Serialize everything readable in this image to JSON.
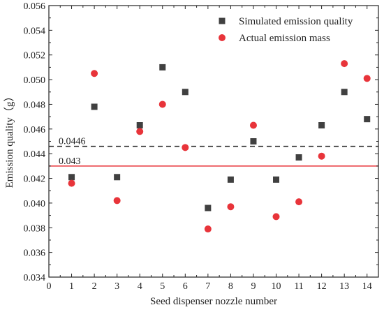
{
  "chart_data": {
    "type": "scatter",
    "xlabel": "Seed dispenser nozzle number",
    "ylabel": "Emission quality（g）",
    "xlim": [
      0,
      14.5
    ],
    "ylim": [
      0.034,
      0.056
    ],
    "xticks": [
      "0",
      "1",
      "2",
      "3",
      "4",
      "5",
      "6",
      "7",
      "8",
      "9",
      "10",
      "11",
      "12",
      "13",
      "14"
    ],
    "yticks": [
      "0.034",
      "0.036",
      "0.038",
      "0.040",
      "0.042",
      "0.044",
      "0.046",
      "0.048",
      "0.050",
      "0.052",
      "0.054",
      "0.056"
    ],
    "legend_position": "top-right",
    "grid": false,
    "series": [
      {
        "name": "Simulated emission quality",
        "marker": "square",
        "color": "#404040",
        "x": [
          1,
          2,
          3,
          4,
          5,
          6,
          7,
          8,
          9,
          10,
          11,
          12,
          13,
          14
        ],
        "values": [
          0.0421,
          0.0478,
          0.0421,
          0.0463,
          0.051,
          0.049,
          0.0396,
          0.0419,
          0.045,
          0.0419,
          0.0437,
          0.0463,
          0.049,
          0.0468
        ]
      },
      {
        "name": "Actual emission mass",
        "marker": "circle",
        "color": "#e8343a",
        "x": [
          1,
          2,
          3,
          4,
          5,
          6,
          7,
          8,
          9,
          10,
          11,
          12,
          13,
          14
        ],
        "values": [
          0.0416,
          0.0505,
          0.0402,
          0.0458,
          0.048,
          0.0445,
          0.0379,
          0.0397,
          0.0463,
          0.0389,
          0.0401,
          0.0438,
          0.0513,
          0.0501
        ]
      }
    ],
    "reference_lines": [
      {
        "value": 0.0446,
        "label": "0.0446",
        "style": "dashed",
        "color": "#222222"
      },
      {
        "value": 0.043,
        "label": "0.043",
        "style": "solid",
        "color": "#e8343a"
      }
    ]
  }
}
